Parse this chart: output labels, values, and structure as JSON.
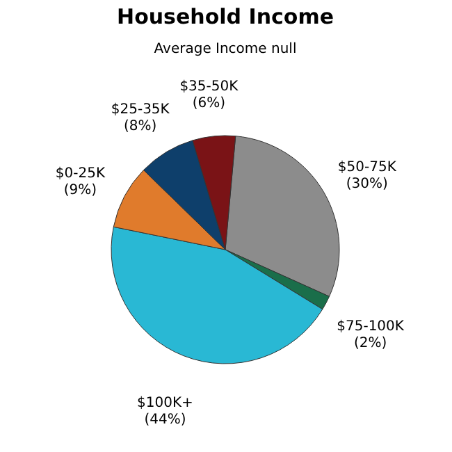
{
  "chart_data": {
    "type": "pie",
    "title": "Household Income",
    "subtitle": "Average Income  null",
    "categories": [
      "$50-75K",
      "$75-100K",
      "$100K+",
      "$0-25K",
      "$25-35K",
      "$35-50K"
    ],
    "values": [
      30,
      2,
      44,
      9,
      8,
      6
    ],
    "value_labels": [
      "(30%)",
      "(2%)",
      "(44%)",
      "(9%)",
      "(8%)",
      "(6%)"
    ],
    "colors": [
      "#8c8c8c",
      "#1a6e4a",
      "#29b8d4",
      "#e07b2c",
      "#0e3f6b",
      "#7a1316"
    ],
    "legend": false
  }
}
